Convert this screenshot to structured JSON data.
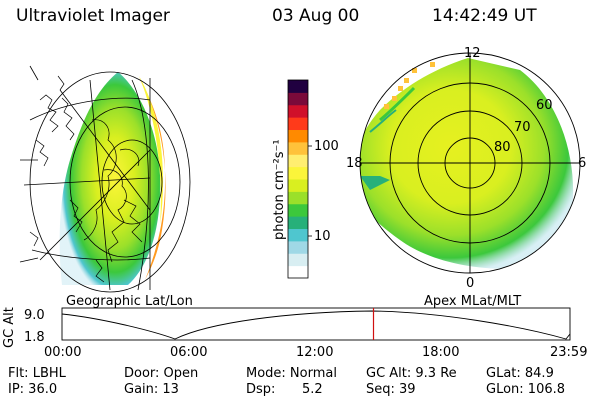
{
  "header": {
    "instrument": "Ultraviolet Imager",
    "date": "03 Aug 00",
    "time": "14:42:49 UT"
  },
  "colorbar": {
    "unit_label": "photon cm⁻²s⁻¹",
    "ticks": [
      "100",
      "10"
    ],
    "colors": [
      "#ffffff",
      "#d8eef2",
      "#9fd8e6",
      "#4fc6cf",
      "#27b07a",
      "#3cc83c",
      "#9be02a",
      "#d9ef20",
      "#fbf53a",
      "#ffee70",
      "#ffc23a",
      "#ff8a00",
      "#ff3a1a",
      "#d0102a",
      "#7a0a3a",
      "#200040"
    ]
  },
  "left_panel": {
    "caption": "Geographic Lat/Lon"
  },
  "right_panel": {
    "caption": "Apex MLat/MLT",
    "mlt_labels": [
      "12",
      "18",
      "6",
      "0"
    ],
    "lat_labels": [
      "60",
      "70",
      "80"
    ]
  },
  "timeline": {
    "axis_label": "GC Alt",
    "y_ticks": [
      "9.0",
      "1.8"
    ],
    "x_ticks": [
      "00:00",
      "06:00",
      "12:00",
      "18:00",
      "23:59"
    ],
    "current_fraction": 0.6131,
    "marker_color": "#d01010"
  },
  "info": {
    "flt": "Flt: LBHL",
    "ip": "IP: 36.0",
    "door": "Door: Open",
    "gain": "Gain: 13",
    "mode": "Mode: Normal",
    "dsp_label": "Dsp:",
    "dsp_value": "5.2",
    "gc_alt": "GC Alt: 9.3 Re",
    "seq": "Seq: 39",
    "glat": "GLat: 84.9",
    "glon": "GLon: 106.8"
  }
}
